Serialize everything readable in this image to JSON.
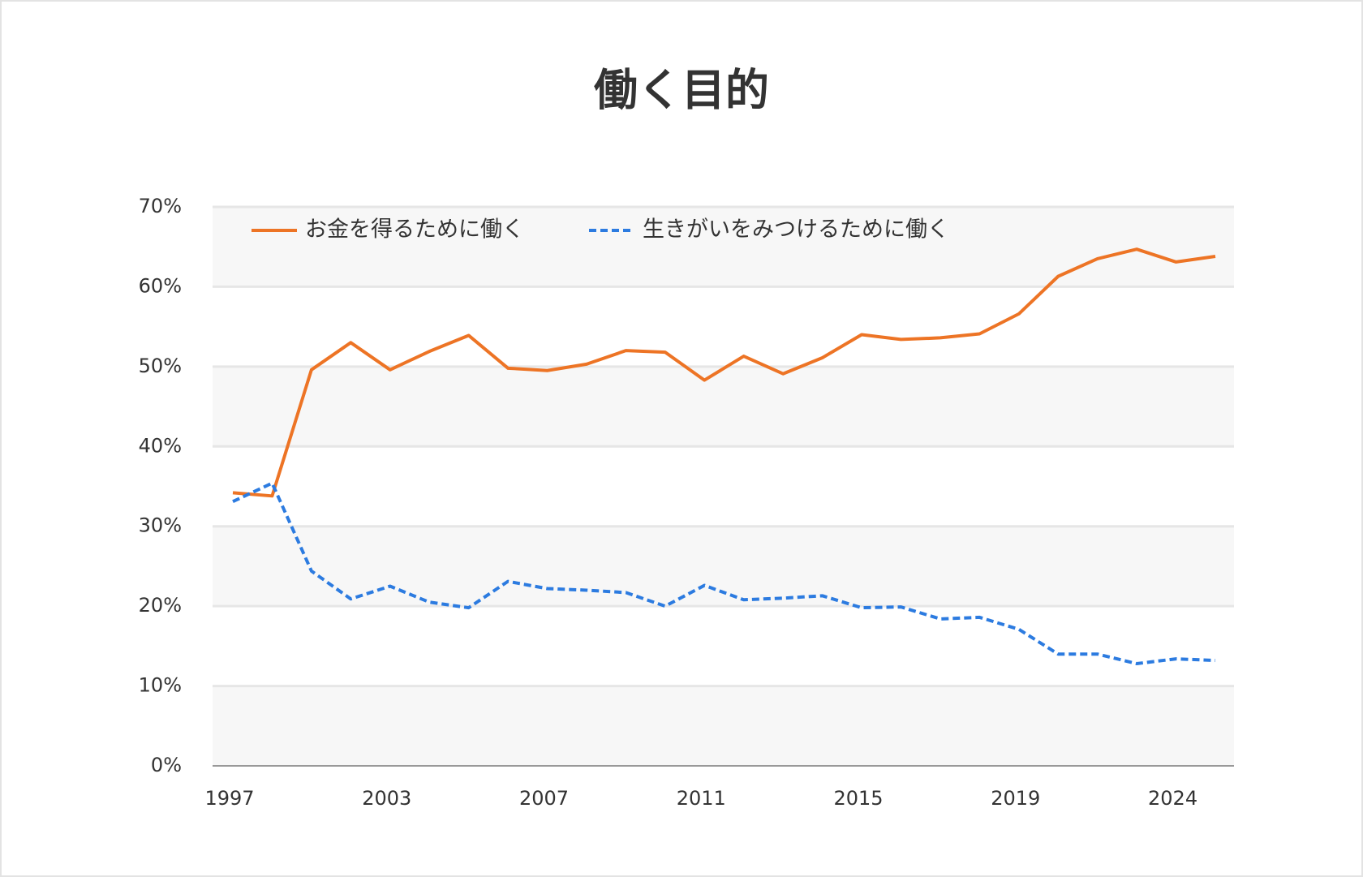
{
  "chart_data": {
    "type": "line",
    "title": "働く目的",
    "categories": [
      "1997",
      null,
      null,
      null,
      "2003",
      null,
      null,
      null,
      "2007",
      null,
      null,
      null,
      "2011",
      null,
      null,
      null,
      "2015",
      null,
      null,
      null,
      "2019",
      null,
      null,
      null,
      "2024",
      null
    ],
    "series": [
      {
        "name": "お金を得るために働く",
        "color": "#ed7425",
        "dashed": false,
        "values": [
          34.2,
          33.8,
          49.6,
          53.0,
          49.6,
          51.9,
          53.9,
          49.8,
          49.5,
          50.3,
          52.0,
          51.8,
          48.3,
          51.3,
          49.1,
          51.1,
          54.0,
          53.4,
          53.6,
          54.1,
          56.6,
          61.3,
          63.5,
          64.7,
          63.1,
          63.8
        ]
      },
      {
        "name": "生きがいをみつけるために働く",
        "color": "#2c7be0",
        "dashed": true,
        "values": [
          33.1,
          35.4,
          24.4,
          20.9,
          22.5,
          20.5,
          19.8,
          23.1,
          22.2,
          22.0,
          21.7,
          20.0,
          22.6,
          20.8,
          21.0,
          21.3,
          19.8,
          19.9,
          18.4,
          18.6,
          17.1,
          14.0,
          14.0,
          12.8,
          13.4,
          13.2
        ]
      }
    ],
    "ylim": [
      0,
      70
    ],
    "yticks": [
      {
        "value": 0,
        "label": "0%"
      },
      {
        "value": 10,
        "label": "10%"
      },
      {
        "value": 20,
        "label": "20%"
      },
      {
        "value": 30,
        "label": "30%"
      },
      {
        "value": 40,
        "label": "40%"
      },
      {
        "value": 50,
        "label": "50%"
      },
      {
        "value": 60,
        "label": "60%"
      },
      {
        "value": 70,
        "label": "70%"
      }
    ],
    "grid": true,
    "legend": "top-left"
  }
}
